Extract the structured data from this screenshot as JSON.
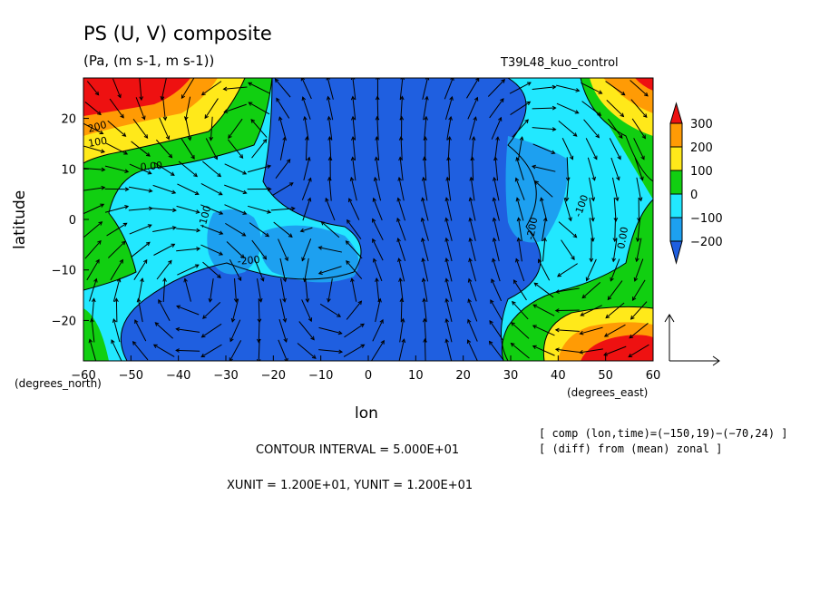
{
  "chart_data": {
    "type": "heatmap",
    "title": "PS (U, V) composite",
    "subtitle": "(Pa, (m s-1, m s-1))",
    "run_label": "T39L48_kuo_control",
    "xlabel": "lon",
    "ylabel": "latitude",
    "x_unit_label": "(degrees_east)",
    "y_unit_label": "(degrees_north)",
    "xlim": [
      -60,
      60
    ],
    "ylim": [
      -28,
      28
    ],
    "x_ticks": [
      "−60",
      "−50",
      "−40",
      "−30",
      "−20",
      "−10",
      "0",
      "10",
      "20",
      "30",
      "40",
      "50",
      "60"
    ],
    "y_ticks": [
      "20",
      "10",
      "0",
      "−10",
      "−20"
    ],
    "colorbar": {
      "levels": [
        -200,
        -100,
        0,
        100,
        200,
        300
      ],
      "labels": [
        "300",
        "200",
        "100",
        "0",
        "−100",
        "−200"
      ],
      "colors": [
        "#1f5fe0",
        "#1da0f0",
        "#22e8ff",
        "#11cf11",
        "#ffe91a",
        "#ff9b05",
        "#ee1111"
      ]
    },
    "contour_labels": [
      "200",
      "100",
      "0.00",
      "-100",
      "-200",
      "-200",
      "-100",
      "0.00"
    ],
    "contour_interval": "CONTOUR INTERVAL = 5.000E+01",
    "vector_units": "XUNIT = 1.200E+01, YUNIT = 1.200E+01",
    "notes": [
      "[ comp (lon,time)=(−150,19)−(−70,24) ]",
      "[ (diff) from (mean) zonal ]"
    ],
    "field_features": [
      {
        "lon": -55,
        "lat": 25,
        "value": 300
      },
      {
        "lon": 52,
        "lat": -25,
        "value": 300
      },
      {
        "lon": 52,
        "lat": 25,
        "value": 200
      },
      {
        "lon": 5,
        "lat": 0,
        "value": -200
      },
      {
        "lon": -15,
        "lat": 18,
        "value": -200
      }
    ]
  }
}
